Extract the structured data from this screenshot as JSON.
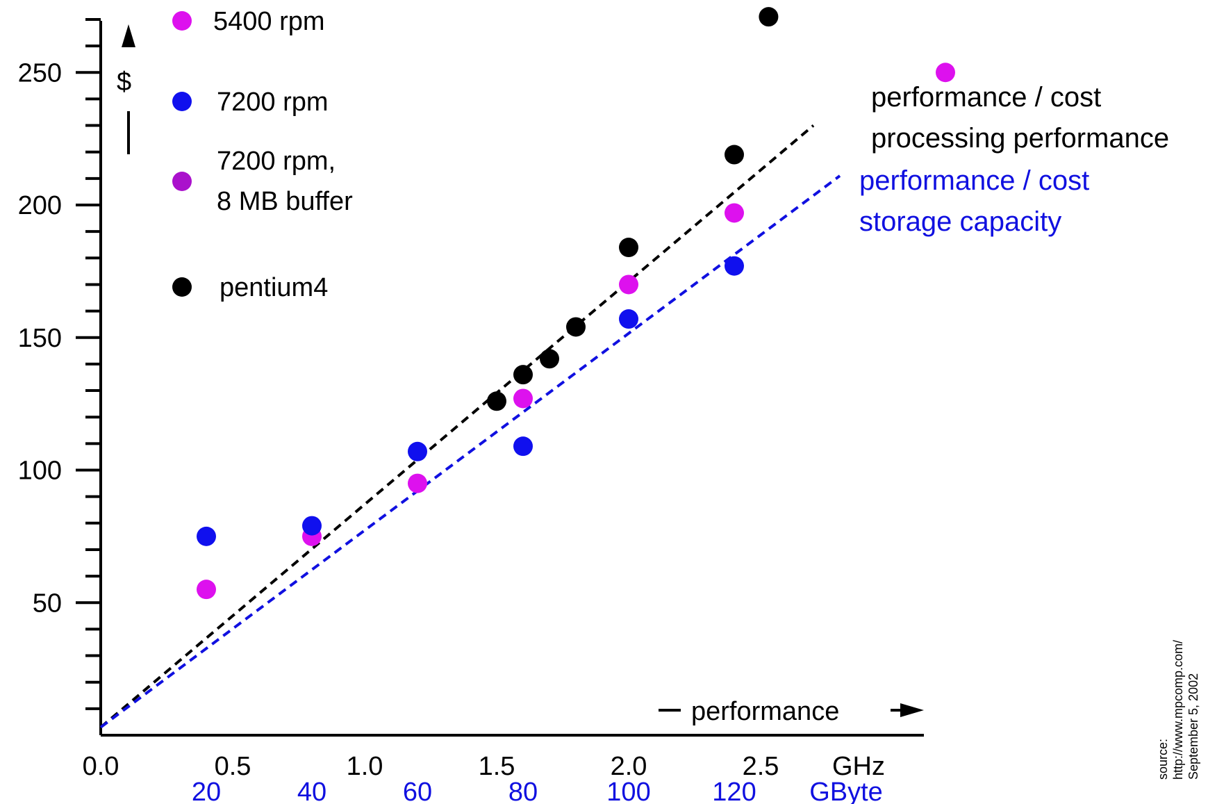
{
  "chart_data": {
    "type": "scatter",
    "title": "",
    "x_axis": {
      "range": [
        0,
        3.1
      ],
      "ticks": [
        "0.0",
        "0.5",
        "1.0",
        "1.5",
        "2.0",
        "2.5"
      ],
      "tick_values": [
        0,
        0.5,
        1.0,
        1.5,
        2.0,
        2.5
      ],
      "unit": "GHz",
      "label": "performance"
    },
    "x_axis_secondary": {
      "ticks": [
        "20",
        "40",
        "60",
        "80",
        "100",
        "120"
      ],
      "tick_values": [
        20,
        40,
        60,
        80,
        100,
        120
      ],
      "unit": "GByte",
      "color": "#1010e0"
    },
    "y_axis": {
      "range": [
        0,
        270
      ],
      "ticks": [
        "50",
        "100",
        "150",
        "200",
        "250"
      ],
      "tick_values": [
        50,
        100,
        150,
        200,
        250
      ],
      "minor_step": 10,
      "label": "$"
    },
    "grid": false,
    "legend_placement": "top-left",
    "series": [
      {
        "name": "5400 rpm",
        "color": "#dd11ee",
        "x_units": "GByte",
        "points": [
          [
            20,
            55
          ],
          [
            40,
            75
          ],
          [
            60,
            95
          ],
          [
            80,
            127
          ],
          [
            100,
            170
          ],
          [
            120,
            197
          ],
          [
            160,
            250
          ]
        ]
      },
      {
        "name": "7200 rpm",
        "color": "#1010ee",
        "x_units": "GByte",
        "points": [
          [
            20,
            75
          ],
          [
            40,
            79
          ],
          [
            60,
            107
          ],
          [
            80,
            109
          ],
          [
            100,
            157
          ],
          [
            120,
            177
          ]
        ]
      },
      {
        "name": "7200 rpm,",
        "name_line2": "8 MB buffer",
        "color": "#aa11cc",
        "x_units": "GByte",
        "points": []
      },
      {
        "name": "pentium4",
        "color": "#000000",
        "x_units": "GHz",
        "points": [
          [
            1.5,
            126
          ],
          [
            1.6,
            136
          ],
          [
            1.7,
            142
          ],
          [
            1.8,
            154
          ],
          [
            2.0,
            184
          ],
          [
            2.4,
            219
          ],
          [
            2.53,
            271
          ]
        ]
      }
    ],
    "trend_lines": [
      {
        "label_line1": "performance / cost",
        "label_line2": "processing performance",
        "color": "#000000",
        "x_units": "GHz",
        "from": [
          0,
          3
        ],
        "to": [
          2.7,
          230
        ]
      },
      {
        "label_line1": "performance / cost",
        "label_line2": "storage capacity",
        "color": "#1010e0",
        "x_units": "GHz",
        "from": [
          0,
          3
        ],
        "to": [
          2.8,
          211
        ]
      }
    ],
    "source_note": [
      "source:",
      "http://www.mpcomp.com/",
      "September 5, 2002"
    ]
  }
}
